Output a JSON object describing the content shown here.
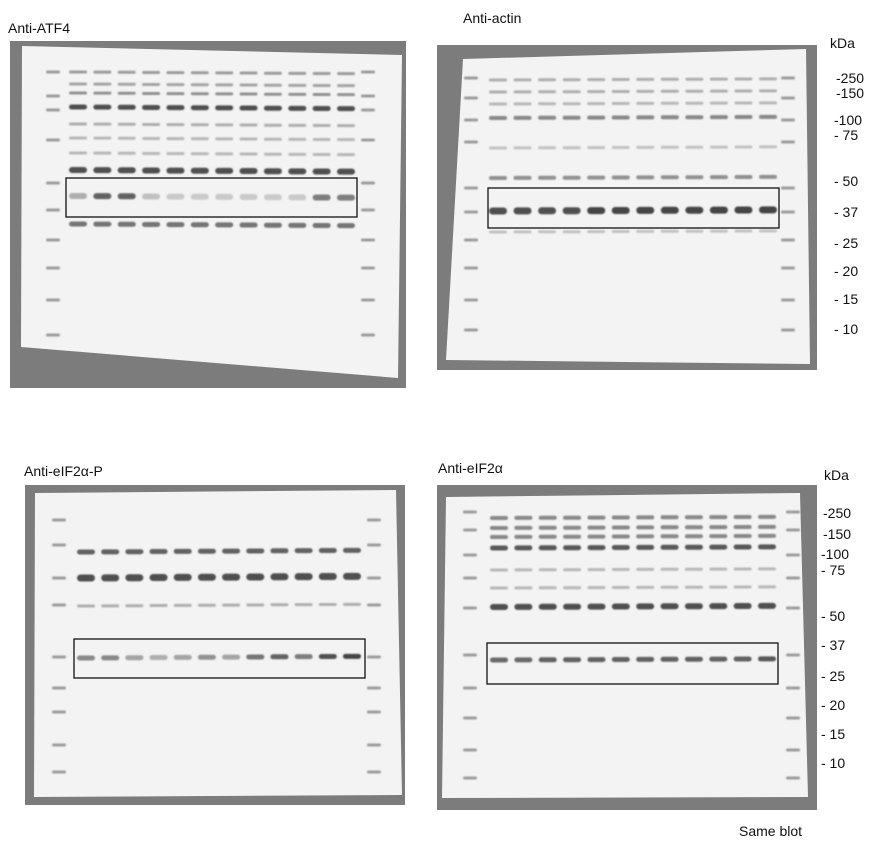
{
  "panels": [
    {
      "id": "atf4",
      "title": "Anti-ATF4"
    },
    {
      "id": "actin",
      "title": "Anti-actin"
    },
    {
      "id": "eif2a_p",
      "title": "Anti-eIF2α-P"
    },
    {
      "id": "eif2a",
      "title": "Anti-eIF2α"
    }
  ],
  "marker_unit": "kDa",
  "markers_top": [
    "-250",
    "-150",
    "-100",
    "- 75",
    "- 50",
    "- 37",
    "- 25",
    "- 20",
    "- 15",
    "- 10"
  ],
  "markers_bottom": [
    "-250",
    "-150",
    "-100",
    "- 75",
    "- 50",
    "- 37",
    "- 25",
    "- 20",
    "- 15",
    "- 10"
  ],
  "footnote": "Same blot",
  "lanes": 12,
  "colors": {
    "background": "#7c7c7c",
    "membrane": "#f3f3f3",
    "band": "#4a4a4a",
    "box": "#111111"
  },
  "band_intensity": {
    "atf4_boxed": [
      0.35,
      0.75,
      0.75,
      0.25,
      0.2,
      0.2,
      0.2,
      0.2,
      0.2,
      0.2,
      0.6,
      0.6
    ],
    "actin_boxed": [
      0.85,
      0.85,
      0.85,
      0.85,
      0.9,
      0.9,
      0.9,
      0.9,
      0.9,
      0.9,
      0.9,
      0.9
    ],
    "eif2a_p_boxed": [
      0.55,
      0.55,
      0.4,
      0.35,
      0.4,
      0.5,
      0.4,
      0.65,
      0.75,
      0.6,
      0.85,
      0.9
    ],
    "eif2a_boxed": [
      0.7,
      0.7,
      0.75,
      0.75,
      0.75,
      0.75,
      0.75,
      0.75,
      0.75,
      0.75,
      0.75,
      0.8
    ]
  }
}
